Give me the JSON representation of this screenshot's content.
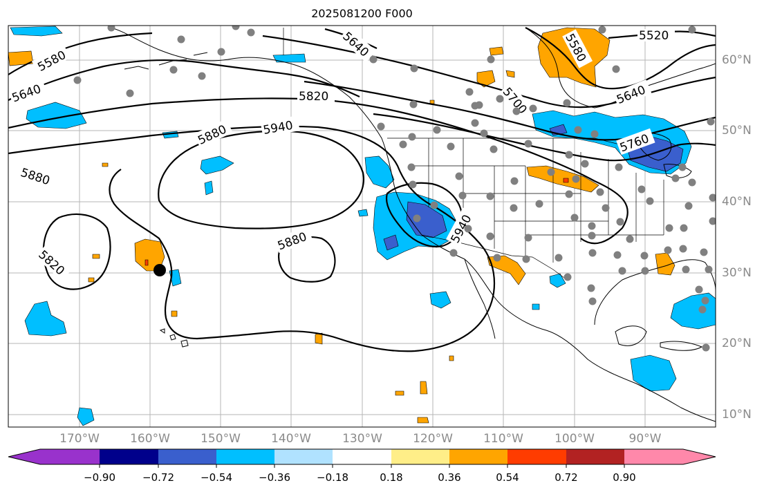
{
  "title": "2025081200 F000",
  "lon_labels": [
    "170°W",
    "160°W",
    "150°W",
    "140°W",
    "130°W",
    "120°W",
    "110°W",
    "100°W",
    "90°W"
  ],
  "lat_labels": [
    "60°N",
    "50°N",
    "40°N",
    "30°N",
    "20°N",
    "10°N"
  ],
  "contour_labels": [
    "5520",
    "5580",
    "5580",
    "5640",
    "5640",
    "5640",
    "5700",
    "5760",
    "5820",
    "5820",
    "5880",
    "5880",
    "5880",
    "5940",
    "5940"
  ],
  "colorbar": {
    "ticks": [
      "−0.90",
      "−0.72",
      "−0.54",
      "−0.36",
      "−0.18",
      "0.18",
      "0.36",
      "0.54",
      "0.72",
      "0.90"
    ],
    "colors": [
      "#9932cc",
      "#00008b",
      "#3a5fcd",
      "#00bfff",
      "#b0e2ff",
      "#ffffff",
      "#ffee88",
      "#ffa500",
      "#ff3c00",
      "#b22222",
      "#ff88aa"
    ]
  }
}
